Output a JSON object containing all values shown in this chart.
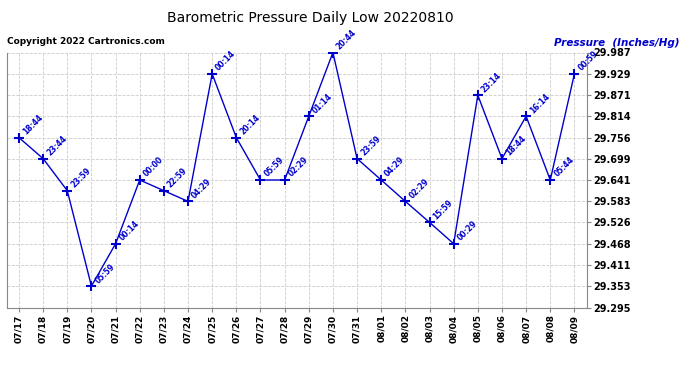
{
  "title": "Barometric Pressure Daily Low 20220810",
  "ylabel": "Pressure  (Inches/Hg)",
  "copyright": "Copyright 2022 Cartronics.com",
  "line_color": "#0000cc",
  "bg_color": "#ffffff",
  "grid_color": "#cccccc",
  "text_color": "#0000cc",
  "x_labels": [
    "07/17",
    "07/18",
    "07/19",
    "07/20",
    "07/21",
    "07/22",
    "07/23",
    "07/24",
    "07/25",
    "07/26",
    "07/27",
    "07/28",
    "07/29",
    "07/30",
    "07/31",
    "08/01",
    "08/02",
    "08/03",
    "08/04",
    "08/05",
    "08/06",
    "08/07",
    "08/08",
    "08/09"
  ],
  "y_values": [
    29.756,
    29.699,
    29.612,
    29.353,
    29.468,
    29.641,
    29.612,
    29.583,
    29.929,
    29.756,
    29.641,
    29.641,
    29.814,
    29.987,
    29.699,
    29.641,
    29.583,
    29.526,
    29.468,
    29.871,
    29.699,
    29.814,
    29.641,
    29.929
  ],
  "annotations": [
    "18:44",
    "23:44",
    "23:59",
    "05:59",
    "00:14",
    "00:00",
    "22:59",
    "04:29",
    "00:14",
    "20:14",
    "05:59",
    "02:29",
    "01:14",
    "20:44",
    "23:59",
    "04:29",
    "02:29",
    "15:59",
    "00:29",
    "23:14",
    "18:44",
    "16:14",
    "05:44",
    "00:59"
  ],
  "ylim": [
    29.295,
    29.987
  ],
  "yticks": [
    29.295,
    29.353,
    29.411,
    29.468,
    29.526,
    29.583,
    29.641,
    29.699,
    29.756,
    29.814,
    29.871,
    29.929,
    29.987
  ],
  "marker": "+",
  "marker_size": 7
}
